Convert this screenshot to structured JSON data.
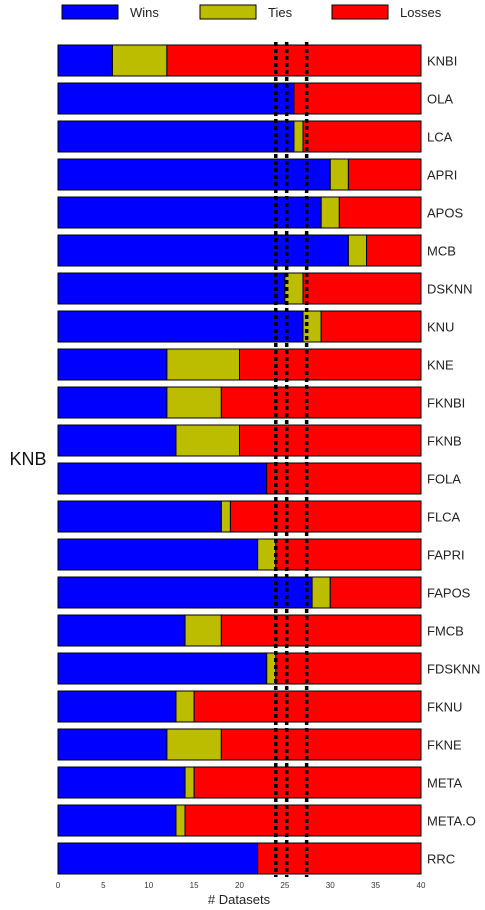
{
  "chart_data": {
    "type": "bar",
    "orientation": "horizontal",
    "stacked": true,
    "side_label": "KNB",
    "xlabel": "# Datasets",
    "xlim": [
      0,
      40
    ],
    "xticks": [
      0,
      5,
      10,
      15,
      20,
      25,
      30,
      35,
      40
    ],
    "legend_position": "top",
    "grid": false,
    "reference_lines": [
      24,
      25.2,
      27.4
    ],
    "categories": [
      "KNBI",
      "OLA",
      "LCA",
      "APRI",
      "APOS",
      "MCB",
      "DSKNN",
      "KNU",
      "KNE",
      "FKNBI",
      "FKNB",
      "FOLA",
      "FLCA",
      "FAPRI",
      "FAPOS",
      "FMCB",
      "FDSKNN",
      "FKNU",
      "FKNE",
      "META",
      "META.O",
      "RRC"
    ],
    "series": [
      {
        "name": "Wins",
        "color": "#0000ff",
        "values": [
          6,
          26,
          26,
          30,
          29,
          32,
          25,
          27,
          12,
          12,
          13,
          23,
          18,
          22,
          28,
          14,
          23,
          13,
          12,
          14,
          13,
          22
        ]
      },
      {
        "name": "Ties",
        "color": "#bdbd00",
        "values": [
          6,
          0,
          1,
          2,
          2,
          2,
          2,
          2,
          8,
          6,
          7,
          0,
          1,
          2,
          2,
          4,
          1,
          2,
          6,
          1,
          1,
          0
        ]
      },
      {
        "name": "Losses",
        "color": "#ff0000",
        "values": [
          28,
          14,
          13,
          8,
          9,
          6,
          13,
          11,
          20,
          22,
          20,
          17,
          21,
          16,
          10,
          22,
          16,
          25,
          22,
          25,
          26,
          18
        ]
      }
    ]
  }
}
